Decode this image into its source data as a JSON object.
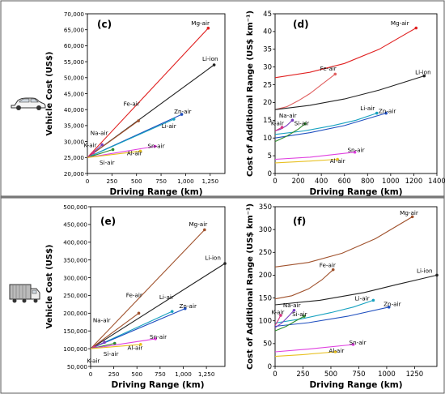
{
  "chart_data": [
    {
      "panel_label": "(c)",
      "type": "line",
      "xlabel": "Driving Range (km)",
      "ylabel": "Vehicle Cost (US$)",
      "xlim": [
        0,
        1400
      ],
      "ylim": [
        20000,
        70000
      ],
      "xticks": [
        0,
        250,
        500,
        750,
        1000,
        1250
      ],
      "xtick_labels": [
        "0",
        "250",
        "500",
        "750",
        "1,000",
        "1,250"
      ],
      "yticks": [
        20000,
        25000,
        30000,
        35000,
        40000,
        45000,
        50000,
        55000,
        60000,
        65000,
        70000
      ],
      "ytick_labels": [
        "20,000",
        "25,000",
        "30,000",
        "35,000",
        "40,000",
        "45,000",
        "50,000",
        "55,000",
        "60,000",
        "65,000",
        "70,000"
      ],
      "series": [
        {
          "name": "Mg-air",
          "color": "#e02020",
          "points": [
            [
              0,
              25000
            ],
            [
              1230,
              65500
            ]
          ]
        },
        {
          "name": "Li-ion",
          "color": "#222222",
          "points": [
            [
              0,
              25000
            ],
            [
              1290,
              54000
            ]
          ]
        },
        {
          "name": "Fe-air",
          "color": "#a0522d",
          "points": [
            [
              0,
              25000
            ],
            [
              520,
              36500
            ]
          ]
        },
        {
          "name": "Zn-air",
          "color": "#1f4fbf",
          "points": [
            [
              0,
              25000
            ],
            [
              960,
              38500
            ]
          ]
        },
        {
          "name": "Li-air",
          "color": "#17a2c0",
          "points": [
            [
              0,
              25000
            ],
            [
              880,
              37000
            ]
          ]
        },
        {
          "name": "Na-air",
          "color": "#7a3fbf",
          "points": [
            [
              0,
              25000
            ],
            [
              150,
              29000
            ]
          ]
        },
        {
          "name": "K-air",
          "color": "#d63384",
          "points": [
            [
              0,
              25000
            ],
            [
              60,
              26500
            ]
          ]
        },
        {
          "name": "Si-air",
          "color": "#2e8b2e",
          "points": [
            [
              0,
              25000
            ],
            [
              260,
              27500
            ]
          ]
        },
        {
          "name": "Sn-air",
          "color": "#e040e0",
          "points": [
            [
              0,
              25000
            ],
            [
              690,
              28500
            ]
          ]
        },
        {
          "name": "Al-air",
          "color": "#e8c020",
          "points": [
            [
              0,
              25000
            ],
            [
              540,
              27000
            ]
          ]
        }
      ]
    },
    {
      "panel_label": "(d)",
      "type": "line",
      "xlabel": "Driving Range (km)",
      "ylabel": "Cost of Additional Range (US$ km⁻¹)",
      "xlim": [
        0,
        1400
      ],
      "ylim": [
        0,
        45
      ],
      "xticks": [
        0,
        200,
        400,
        600,
        800,
        1000,
        1200,
        1400
      ],
      "xtick_labels": [
        "0",
        "200",
        "400",
        "600",
        "800",
        "1000",
        "1200",
        "1400"
      ],
      "yticks": [
        0,
        5,
        10,
        15,
        20,
        25,
        30,
        35,
        40,
        45
      ],
      "ytick_labels": [
        "0",
        "5",
        "10",
        "15",
        "20",
        "25",
        "30",
        "35",
        "40",
        "45"
      ],
      "series": [
        {
          "name": "Mg-air",
          "color": "#e02020",
          "points": [
            [
              0,
              27
            ],
            [
              300,
              28.5
            ],
            [
              600,
              31
            ],
            [
              900,
              35
            ],
            [
              1220,
              41
            ]
          ]
        },
        {
          "name": "Fe-air",
          "color": "#e06060",
          "points": [
            [
              0,
              18
            ],
            [
              100,
              18.8
            ],
            [
              200,
              20.5
            ],
            [
              300,
              22.5
            ],
            [
              400,
              25
            ],
            [
              520,
              28
            ]
          ]
        },
        {
          "name": "Li-ion",
          "color": "#222222",
          "points": [
            [
              0,
              18
            ],
            [
              300,
              19.2
            ],
            [
              600,
              21
            ],
            [
              900,
              23.5
            ],
            [
              1290,
              27.5
            ]
          ]
        },
        {
          "name": "Li-air",
          "color": "#17a2c0",
          "points": [
            [
              0,
              11
            ],
            [
              250,
              12
            ],
            [
              500,
              13.5
            ],
            [
              700,
              15
            ],
            [
              880,
              17
            ]
          ]
        },
        {
          "name": "Zn-air",
          "color": "#1f4fbf",
          "points": [
            [
              0,
              10
            ],
            [
              300,
              11.5
            ],
            [
              600,
              13.5
            ],
            [
              960,
              17
            ]
          ]
        },
        {
          "name": "Na-air",
          "color": "#7a3fbf",
          "points": [
            [
              0,
              12
            ],
            [
              50,
              12.5
            ],
            [
              100,
              13.5
            ],
            [
              150,
              15
            ]
          ]
        },
        {
          "name": "K-air",
          "color": "#d63384",
          "points": [
            [
              0,
              12
            ],
            [
              30,
              12.5
            ],
            [
              60,
              13
            ]
          ]
        },
        {
          "name": "Si-air",
          "color": "#2e8b2e",
          "points": [
            [
              0,
              9
            ],
            [
              100,
              10.5
            ],
            [
              200,
              12.5
            ],
            [
              260,
              14
            ]
          ]
        },
        {
          "name": "Sn-air",
          "color": "#e040e0",
          "points": [
            [
              0,
              4
            ],
            [
              300,
              4.6
            ],
            [
              690,
              6
            ]
          ]
        },
        {
          "name": "Al-air",
          "color": "#e8c020",
          "points": [
            [
              0,
              3
            ],
            [
              250,
              3.4
            ],
            [
              540,
              4
            ]
          ]
        }
      ]
    },
    {
      "panel_label": "(e)",
      "type": "line",
      "xlabel": "Driving Range (km)",
      "ylabel": "Vehicle Cost (US$)",
      "xlim": [
        0,
        1450
      ],
      "ylim": [
        50000,
        500000
      ],
      "xticks": [
        0,
        250,
        500,
        750,
        1000,
        1250
      ],
      "xtick_labels": [
        "0",
        "250",
        "500",
        "750",
        "1,000",
        "1,250"
      ],
      "yticks": [
        50000,
        100000,
        150000,
        200000,
        250000,
        300000,
        350000,
        400000,
        450000,
        500000
      ],
      "ytick_labels": [
        "50,000",
        "100,000",
        "150,000",
        "200,000",
        "250,000",
        "300,000",
        "350,000",
        "400,000",
        "450,000",
        "500,000"
      ],
      "series": [
        {
          "name": "Mg-air",
          "color": "#a0522d",
          "points": [
            [
              0,
              100000
            ],
            [
              1230,
              435000
            ]
          ]
        },
        {
          "name": "Li-ion",
          "color": "#222222",
          "points": [
            [
              0,
              100000
            ],
            [
              1450,
              340000
            ]
          ]
        },
        {
          "name": "Fe-air",
          "color": "#a0522d",
          "points": [
            [
              0,
              100000
            ],
            [
              520,
              200000
            ]
          ]
        },
        {
          "name": "Li-air",
          "color": "#17a2c0",
          "points": [
            [
              0,
              100000
            ],
            [
              880,
              205000
            ]
          ]
        },
        {
          "name": "Zn-air",
          "color": "#1f4fbf",
          "points": [
            [
              0,
              100000
            ],
            [
              1020,
              213000
            ]
          ]
        },
        {
          "name": "Na-air",
          "color": "#7a3fbf",
          "points": [
            [
              0,
              100000
            ],
            [
              150,
              118000
            ]
          ]
        },
        {
          "name": "K-air",
          "color": "#d63384",
          "points": [
            [
              0,
              100000
            ],
            [
              40,
              104000
            ]
          ]
        },
        {
          "name": "Si-air",
          "color": "#2e8b2e",
          "points": [
            [
              0,
              100000
            ],
            [
              260,
              115000
            ]
          ]
        },
        {
          "name": "Sn-air",
          "color": "#e040e0",
          "points": [
            [
              0,
              100000
            ],
            [
              700,
              128000
            ]
          ]
        },
        {
          "name": "Al-air",
          "color": "#e8c020",
          "points": [
            [
              0,
              100000
            ],
            [
              540,
              112000
            ]
          ]
        }
      ]
    },
    {
      "panel_label": "(f)",
      "type": "line",
      "xlabel": "Driving Range (km)",
      "ylabel": "Cost of Additional Range (US$ km⁻¹)",
      "xlim": [
        0,
        1450
      ],
      "ylim": [
        0,
        350
      ],
      "xticks": [
        0,
        250,
        500,
        750,
        1000,
        1250
      ],
      "xtick_labels": [
        "0",
        "250",
        "500",
        "750",
        "1000",
        "1250"
      ],
      "yticks": [
        0,
        50,
        100,
        150,
        200,
        250,
        300,
        350
      ],
      "ytick_labels": [
        "0",
        "50",
        "100",
        "150",
        "200",
        "250",
        "300",
        "350"
      ],
      "series": [
        {
          "name": "Mg-air",
          "color": "#a0522d",
          "points": [
            [
              0,
              218
            ],
            [
              300,
              228
            ],
            [
              600,
              248
            ],
            [
              900,
              280
            ],
            [
              1230,
              328
            ]
          ]
        },
        {
          "name": "Fe-air",
          "color": "#a0522d",
          "points": [
            [
              0,
              148
            ],
            [
              150,
              155
            ],
            [
              300,
              170
            ],
            [
              420,
              190
            ],
            [
              520,
              212
            ]
          ]
        },
        {
          "name": "Li-ion",
          "color": "#222222",
          "points": [
            [
              0,
              135
            ],
            [
              400,
              145
            ],
            [
              800,
              162
            ],
            [
              1100,
              180
            ],
            [
              1450,
              200
            ]
          ]
        },
        {
          "name": "Li-air",
          "color": "#17a2c0",
          "points": [
            [
              0,
              95
            ],
            [
              250,
              105
            ],
            [
              500,
              118
            ],
            [
              700,
              130
            ],
            [
              880,
              145
            ]
          ]
        },
        {
          "name": "Zn-air",
          "color": "#1f4fbf",
          "points": [
            [
              0,
              88
            ],
            [
              300,
              96
            ],
            [
              650,
              110
            ],
            [
              1020,
              130
            ]
          ]
        },
        {
          "name": "Na-air",
          "color": "#7a3fbf",
          "points": [
            [
              0,
              85
            ],
            [
              60,
              95
            ],
            [
              120,
              110
            ],
            [
              170,
              123
            ]
          ]
        },
        {
          "name": "K-air",
          "color": "#d63384",
          "points": [
            [
              0,
              90
            ],
            [
              25,
              100
            ],
            [
              50,
              112
            ]
          ]
        },
        {
          "name": "Si-air",
          "color": "#2e8b2e",
          "points": [
            [
              0,
              78
            ],
            [
              100,
              88
            ],
            [
              200,
              102
            ],
            [
              260,
              110
            ]
          ]
        },
        {
          "name": "Sn-air",
          "color": "#e040e0",
          "points": [
            [
              0,
              32
            ],
            [
              300,
              38
            ],
            [
              700,
              48
            ]
          ]
        },
        {
          "name": "Al-air",
          "color": "#e8c020",
          "points": [
            [
              0,
              22
            ],
            [
              250,
              26
            ],
            [
              540,
              32
            ]
          ]
        }
      ]
    }
  ],
  "labels": {
    "c": [
      {
        "text": "Mg-air",
        "x": 1150,
        "y": 66500
      },
      {
        "text": "Li-ion",
        "x": 1250,
        "y": 55300
      },
      {
        "text": "Fe-air",
        "x": 450,
        "y": 41200
      },
      {
        "text": "Zn-air",
        "x": 970,
        "y": 38800
      },
      {
        "text": "Li-air",
        "x": 830,
        "y": 34200
      },
      {
        "text": "Na-air",
        "x": 120,
        "y": 32000
      },
      {
        "text": "K-air",
        "x": 30,
        "y": 28200
      },
      {
        "text": "Si-air",
        "x": 200,
        "y": 22800
      },
      {
        "text": "Sn-air",
        "x": 700,
        "y": 28000
      },
      {
        "text": "Al-air",
        "x": 480,
        "y": 25700
      }
    ],
    "d": [
      {
        "text": "Mg-air",
        "x": 1080,
        "y": 41800
      },
      {
        "text": "Fe-air",
        "x": 460,
        "y": 29000
      },
      {
        "text": "Li-ion",
        "x": 1280,
        "y": 28000
      },
      {
        "text": "Li-air",
        "x": 800,
        "y": 17800
      },
      {
        "text": "Zn-air",
        "x": 970,
        "y": 17000
      },
      {
        "text": "Na-air",
        "x": 110,
        "y": 15800
      },
      {
        "text": "K-air",
        "x": 20,
        "y": 13600
      },
      {
        "text": "Si-air",
        "x": 230,
        "y": 13600
      },
      {
        "text": "Sn-air",
        "x": 700,
        "y": 6100
      },
      {
        "text": "Al-air",
        "x": 540,
        "y": 3000
      }
    ],
    "e": [
      {
        "text": "Mg-air",
        "x": 1160,
        "y": 445000
      },
      {
        "text": "Li-ion",
        "x": 1320,
        "y": 350000
      },
      {
        "text": "Fe-air",
        "x": 470,
        "y": 245000
      },
      {
        "text": "Li-air",
        "x": 820,
        "y": 240000
      },
      {
        "text": "Zn-air",
        "x": 1050,
        "y": 215000
      },
      {
        "text": "Na-air",
        "x": 120,
        "y": 175000
      },
      {
        "text": "K-air",
        "x": 30,
        "y": 60000
      },
      {
        "text": "Si-air",
        "x": 220,
        "y": 80000
      },
      {
        "text": "Sn-air",
        "x": 730,
        "y": 128000
      },
      {
        "text": "Al-air",
        "x": 480,
        "y": 97000
      }
    ],
    "f": [
      {
        "text": "Mg-air",
        "x": 1200,
        "y": 332000
      },
      {
        "text": "Fe-air",
        "x": 470,
        "y": 218000
      },
      {
        "text": "Li-ion",
        "x": 1340,
        "y": 205000
      },
      {
        "text": "Li-air",
        "x": 780,
        "y": 145000
      },
      {
        "text": "Zn-air",
        "x": 1050,
        "y": 132000
      },
      {
        "text": "Na-air",
        "x": 150,
        "y": 130000
      },
      {
        "text": "K-air",
        "x": 25,
        "y": 115000
      },
      {
        "text": "Si-air",
        "x": 220,
        "y": 110000
      },
      {
        "text": "Sn-air",
        "x": 740,
        "y": 48000
      },
      {
        "text": "Al-air",
        "x": 550,
        "y": 30000
      }
    ]
  }
}
